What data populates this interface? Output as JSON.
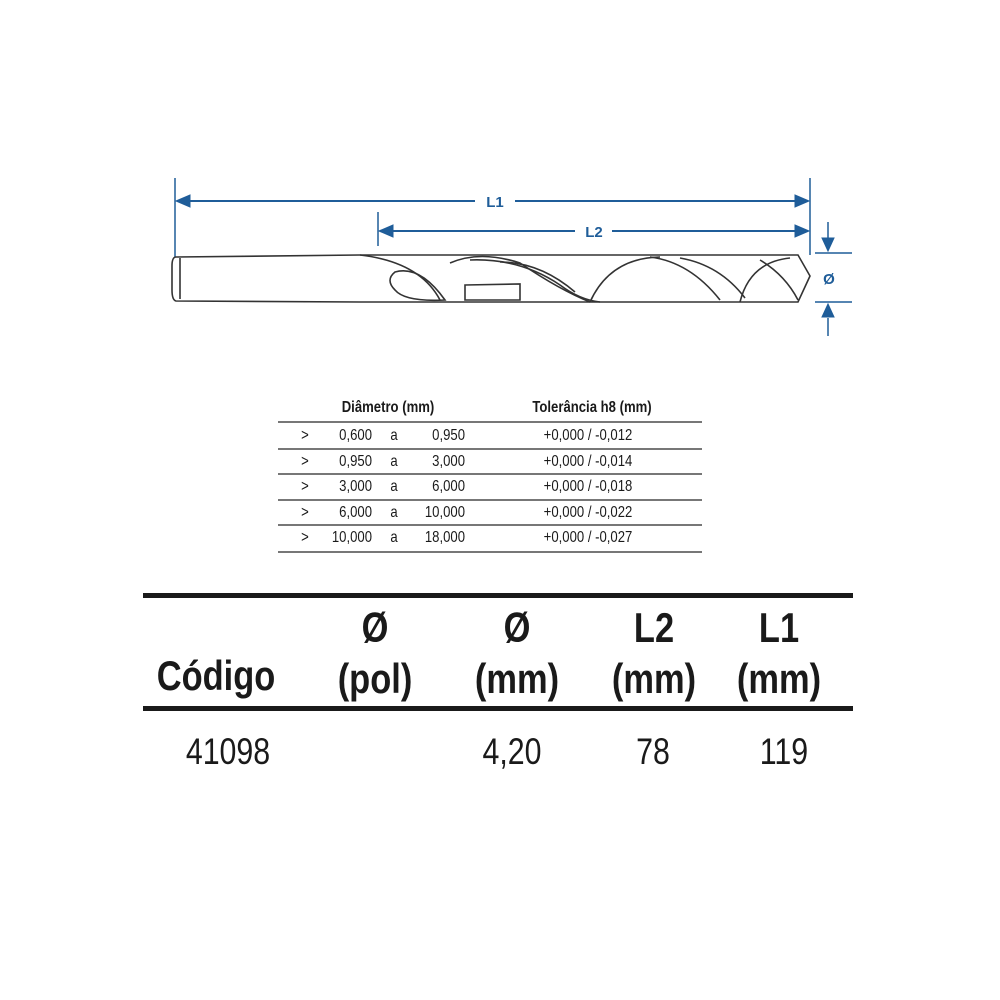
{
  "diagram": {
    "labels": {
      "l1": "L1",
      "l2": "L2",
      "diameter": "Ø"
    },
    "accent_color": "#1f5d99"
  },
  "tolerance_table": {
    "headers": [
      "Diâmetro (mm)",
      "Tolerância h8 (mm)"
    ],
    "rows": [
      {
        "sign": ">",
        "from": "0,600",
        "sep": "a",
        "to": "0,950",
        "tolerance": "+0,000 / -0,012"
      },
      {
        "sign": ">",
        "from": "0,950",
        "sep": "a",
        "to": "3,000",
        "tolerance": "+0,000 / -0,014"
      },
      {
        "sign": ">",
        "from": "3,000",
        "sep": "a",
        "to": "6,000",
        "tolerance": "+0,000 / -0,018"
      },
      {
        "sign": ">",
        "from": "6,000",
        "sep": "a",
        "to": "10,000",
        "tolerance": "+0,000 / -0,022"
      },
      {
        "sign": ">",
        "from": "10,000",
        "sep": "a",
        "to": "18,000",
        "tolerance": "+0,000 / -0,027"
      }
    ]
  },
  "product_table": {
    "headers": [
      {
        "line1": "",
        "line2": "Código"
      },
      {
        "line1": "Ø",
        "line2": "(pol)"
      },
      {
        "line1": "Ø",
        "line2": "(mm)"
      },
      {
        "line1": "L2",
        "line2": "(mm)"
      },
      {
        "line1": "L1",
        "line2": "(mm)"
      }
    ],
    "rows": [
      {
        "codigo": "41098",
        "pol": "",
        "mm": "4,20",
        "l2": "78",
        "l1": "119"
      }
    ]
  }
}
